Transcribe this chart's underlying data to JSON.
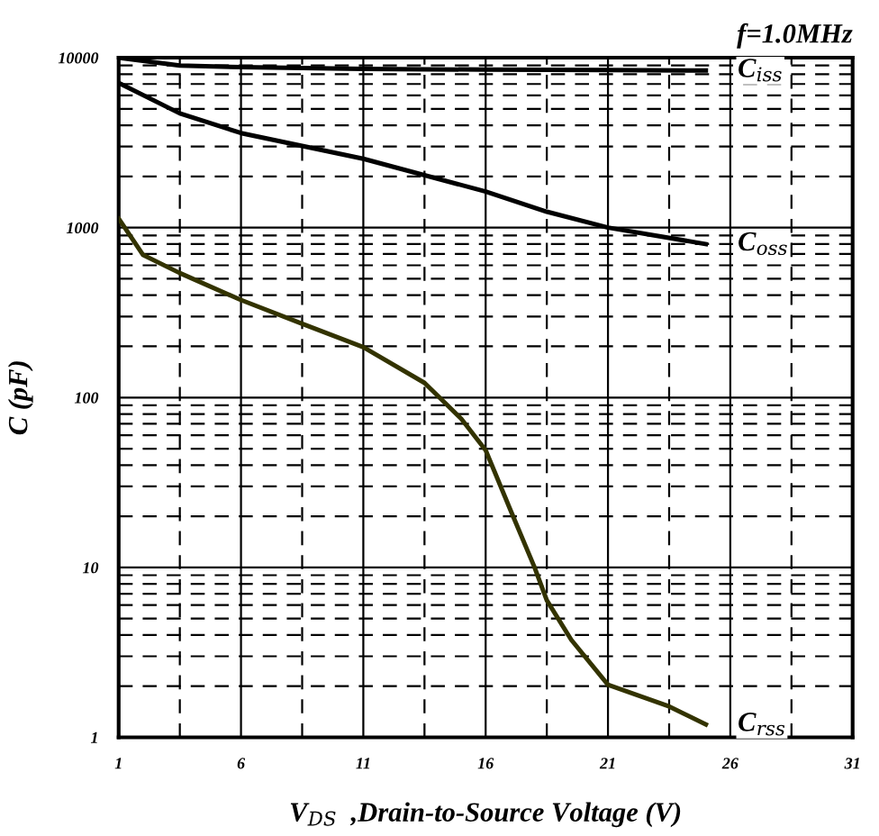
{
  "chart_data": {
    "type": "line",
    "title": "f=1.0MHz",
    "xlabel": "V$_{DS}$  ,Drain-to-Source Voltage (V)",
    "ylabel": "C (pF)",
    "log": "y",
    "grid": true,
    "legend": false,
    "marker": "none",
    "line_style": "solid",
    "xlim": [
      1,
      31
    ],
    "xticks": [
      1,
      6,
      11,
      16,
      21,
      26,
      31
    ],
    "ylim": [
      1,
      10000
    ],
    "yticks": [
      1,
      10,
      100,
      1000,
      10000
    ],
    "series": [
      {
        "name": "C$_{iss}$",
        "color": "#000000",
        "x": [
          1,
          3.5,
          6,
          11,
          16,
          21,
          25
        ],
        "values": [
          10000,
          9000,
          8800,
          8600,
          8500,
          8450,
          8400
        ]
      },
      {
        "name": "C$_{oss}$",
        "color": "#000000",
        "x": [
          1,
          3.5,
          6,
          11,
          16,
          18.5,
          21,
          25
        ],
        "values": [
          7100,
          4700,
          3600,
          2540,
          1630,
          1240,
          1000,
          800
        ]
      },
      {
        "name": "C$_{rss}$",
        "color": "#333300",
        "x": [
          1,
          2,
          3.5,
          6,
          8.5,
          11,
          13.5,
          15,
          16,
          17,
          18,
          18.5,
          19.5,
          21,
          23.5,
          25
        ],
        "values": [
          1130,
          690,
          540,
          375,
          272,
          198,
          122,
          75,
          49,
          22,
          10,
          6.4,
          3.75,
          2.04,
          1.52,
          1.19
        ]
      }
    ]
  }
}
